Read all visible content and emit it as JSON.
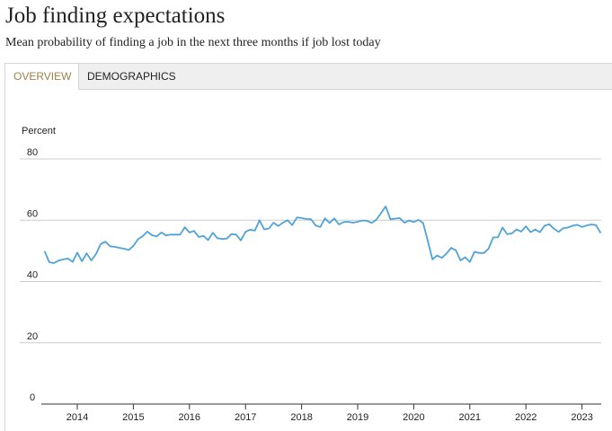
{
  "header": {
    "title": "Job finding expectations",
    "subtitle": "Mean probability of finding a job in the next three months if job lost today"
  },
  "tabs": [
    {
      "label": "OVERVIEW",
      "active": true
    },
    {
      "label": "DEMOGRAPHICS",
      "active": false
    }
  ],
  "colors": {
    "line": "#4fa3d8",
    "active_tab_text": "#a0804a",
    "grid": "#cccccc"
  },
  "chart_data": {
    "type": "line",
    "title": "",
    "xlabel": "",
    "ylabel": "Percent",
    "ylim": [
      0,
      80
    ],
    "yticks": [
      0,
      20,
      40,
      60,
      80
    ],
    "xticks": [
      "2014",
      "2015",
      "2016",
      "2017",
      "2018",
      "2019",
      "2020",
      "2021",
      "2022",
      "2023"
    ],
    "grid": "horizontal",
    "series": [
      {
        "x_start": "2013-06",
        "x_end": "2023-05",
        "values": [
          49.9,
          46.3,
          46.0,
          46.8,
          47.2,
          47.5,
          46.4,
          49.4,
          46.6,
          49.2,
          46.9,
          48.9,
          52.2,
          53.0,
          51.5,
          51.3,
          51.0,
          50.7,
          50.3,
          51.6,
          53.8,
          54.8,
          56.3,
          55.1,
          54.7,
          56.0,
          55.0,
          55.3,
          55.3,
          55.3,
          57.7,
          56.0,
          56.5,
          54.5,
          54.9,
          53.5,
          55.9,
          54.1,
          53.9,
          54.0,
          55.5,
          55.3,
          53.4,
          56.2,
          56.9,
          56.6,
          60.0,
          57.0,
          57.3,
          59.2,
          58.1,
          59.2,
          60.0,
          58.4,
          60.9,
          60.7,
          60.4,
          60.3,
          58.3,
          57.8,
          60.6,
          59.1,
          60.6,
          58.6,
          59.4,
          59.5,
          59.2,
          59.5,
          59.9,
          59.8,
          59.1,
          60.2,
          62.3,
          64.5,
          60.3,
          60.5,
          60.7,
          59.2,
          59.9,
          59.4,
          60.1,
          59.1,
          53.3,
          47.2,
          48.5,
          47.7,
          49.1,
          51.0,
          50.2,
          46.9,
          47.9,
          46.4,
          49.7,
          49.3,
          49.3,
          50.7,
          54.4,
          54.4,
          57.6,
          55.4,
          55.7,
          57.0,
          56.3,
          58.0,
          56.1,
          57.0,
          56.1,
          58.2,
          58.7,
          57.2,
          56.2,
          57.4,
          57.6,
          58.2,
          58.5,
          57.8,
          58.3,
          58.6,
          58.4,
          55.8
        ]
      }
    ]
  }
}
